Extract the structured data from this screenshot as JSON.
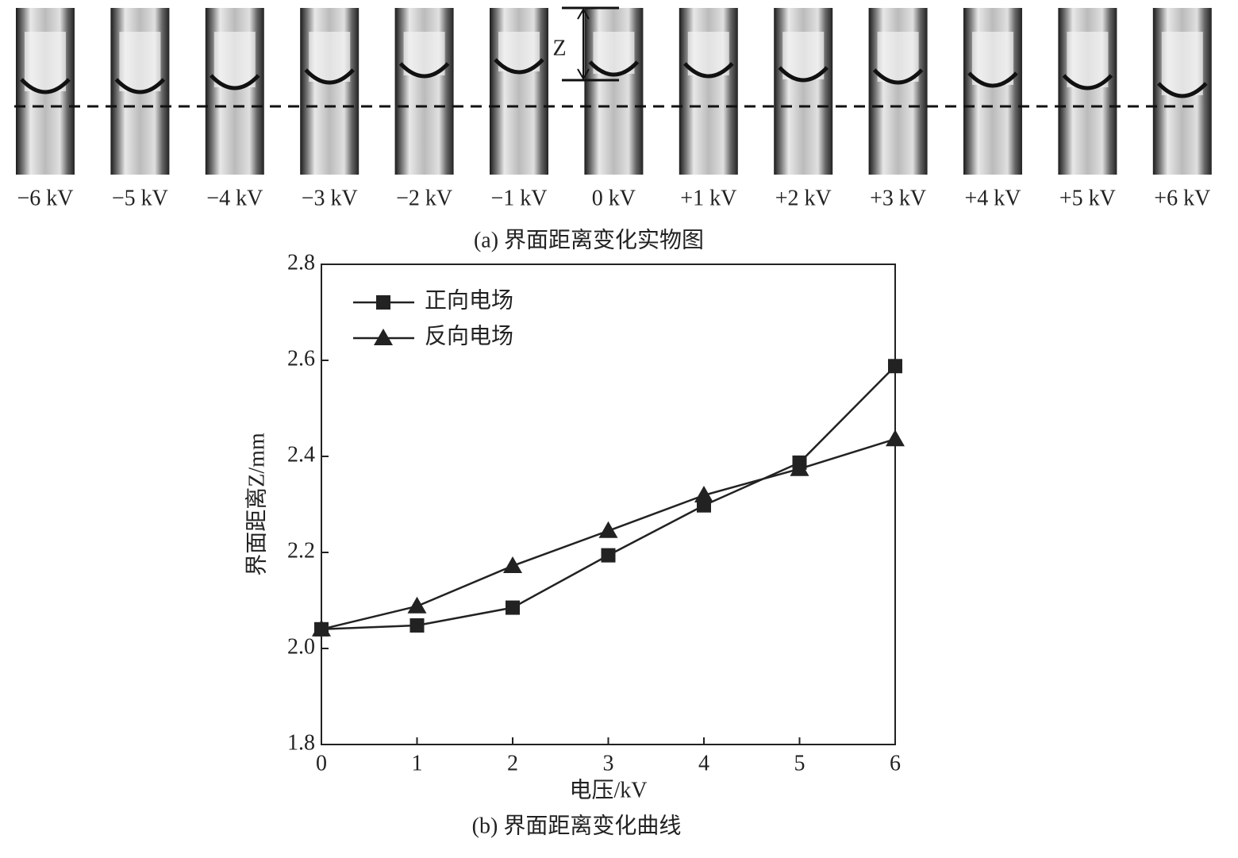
{
  "photo_panel": {
    "labels": [
      "−6 kV",
      "−5 kV",
      "−4 kV",
      "−3 kV",
      "−2 kV",
      "−1 kV",
      "0 kV",
      "+1 kV",
      "+2 kV",
      "+3 kV",
      "+4 kV",
      "+5 kV",
      "+6 kV"
    ],
    "z_label": "Z",
    "caption": "(a) 界面距离变化实物图"
  },
  "chart_data": {
    "type": "line",
    "caption": "(b) 界面距离变化曲线",
    "x_label": "电压/kV",
    "y_label": "界面距离Z/mm",
    "x": [
      0,
      1,
      2,
      3,
      4,
      5,
      6
    ],
    "series": [
      {
        "name": "正向电场",
        "color": "#222222",
        "marker": "square",
        "values": [
          2.04,
          2.048,
          2.085,
          2.194,
          2.298,
          2.387,
          2.588
        ]
      },
      {
        "name": "反向电场",
        "color": "#222222",
        "marker": "triangle",
        "values": [
          2.04,
          2.088,
          2.172,
          2.245,
          2.319,
          2.374,
          2.436
        ]
      }
    ],
    "xlim": [
      0,
      6
    ],
    "xticks": [
      0,
      1,
      2,
      3,
      4,
      5,
      6
    ],
    "ylim": [
      1.8,
      2.8
    ],
    "yticks": [
      1.8,
      {
        "value": 2,
        "label": "2.0"
      },
      2.2,
      2.4,
      2.6,
      2.8
    ],
    "legend": "upper-left"
  }
}
